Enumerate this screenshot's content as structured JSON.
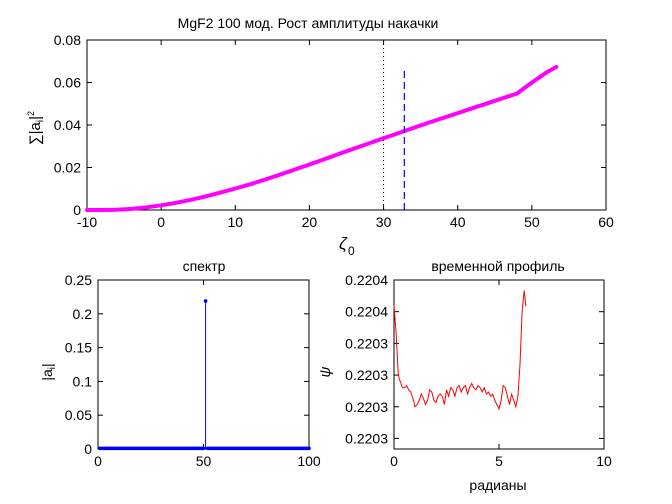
{
  "chart_data": [
    {
      "type": "line",
      "title": "MgF2 100 мод. Рост амплитуды накачки",
      "xlabel": "ζ0",
      "ylabel": "∑|a_i|²",
      "xlim": [
        -10,
        60
      ],
      "ylim": [
        0,
        0.08
      ],
      "xticks": [
        "-10",
        "0",
        "10",
        "20",
        "30",
        "40",
        "50",
        "60"
      ],
      "yticks": [
        "0",
        "0.02",
        "0.04",
        "0.06",
        "0.08"
      ],
      "series": [
        {
          "color": "#ff00ff",
          "x": [
            -10,
            -8,
            -6,
            -4,
            -2,
            0,
            2,
            4,
            6,
            8,
            10,
            12,
            14,
            16,
            18,
            20,
            22,
            24,
            26,
            28,
            30,
            32,
            34,
            36,
            38,
            40,
            42,
            44,
            46,
            48,
            50,
            52,
            53.3
          ],
          "y": [
            0.0,
            0.0,
            0.0001,
            0.0005,
            0.0012,
            0.0022,
            0.0034,
            0.0048,
            0.0064,
            0.0082,
            0.0101,
            0.0121,
            0.0143,
            0.0166,
            0.019,
            0.0214,
            0.0239,
            0.0264,
            0.0289,
            0.0313,
            0.0338,
            0.0362,
            0.0386,
            0.041,
            0.0433,
            0.0456,
            0.0479,
            0.0502,
            0.0525,
            0.0548,
            0.06,
            0.0648,
            0.0673
          ]
        }
      ],
      "marker_line": {
        "x": 32.8,
        "y_range": [
          0,
          0.067
        ],
        "style": "dashed",
        "color": "#0000ff"
      },
      "grid": false
    },
    {
      "type": "stem",
      "title": "спектр",
      "xlabel": "",
      "ylabel": "|a_i|",
      "xlim": [
        0,
        100
      ],
      "ylim": [
        0,
        0.25
      ],
      "xticks": [
        "0",
        "50",
        "100"
      ],
      "yticks": [
        "0",
        "0.05",
        "0.1",
        "0.15",
        "0.2",
        "0.25"
      ],
      "series": [
        {
          "color": "#0000ff",
          "x_start": 1,
          "x_end": 100,
          "peak_index": 51,
          "peak_value": 0.219,
          "base_value": 0.001
        }
      ],
      "grid": false
    },
    {
      "type": "line",
      "title": "временной профиль",
      "xlabel": "радианы",
      "ylabel": "ψ",
      "xlim": [
        0,
        10
      ],
      "ylim": [
        0.22026,
        0.22042
      ],
      "xticks": [
        "0",
        "5",
        "10"
      ],
      "yticks": [
        "0.2203",
        "0.2203",
        "0.2203",
        "0.2203",
        "0.2204",
        "0.2204"
      ],
      "ytick_values": [
        0.22027,
        0.2203,
        0.22033,
        0.22036,
        0.22039,
        0.22042
      ],
      "series": [
        {
          "color": "#ff0000",
          "x": [
            0.0,
            0.1,
            0.2,
            0.25,
            0.3,
            0.4,
            0.5,
            0.6,
            0.7,
            0.8,
            0.9,
            1.0,
            1.1,
            1.2,
            1.3,
            1.4,
            1.5,
            1.6,
            1.7,
            1.8,
            1.9,
            2.0,
            2.1,
            2.2,
            2.3,
            2.4,
            2.5,
            2.6,
            2.7,
            2.8,
            2.9,
            3.0,
            3.1,
            3.2,
            3.3,
            3.4,
            3.5,
            3.6,
            3.7,
            3.8,
            3.9,
            4.0,
            4.1,
            4.2,
            4.3,
            4.4,
            4.5,
            4.6,
            4.7,
            4.8,
            4.9,
            5.0,
            5.1,
            5.2,
            5.3,
            5.4,
            5.5,
            5.6,
            5.7,
            5.8,
            5.9,
            6.0,
            6.1,
            6.2,
            6.28
          ],
          "y": [
            0.220396,
            0.22037,
            0.220332,
            0.220326,
            0.220324,
            0.220318,
            0.220318,
            0.22032,
            0.220316,
            0.220314,
            0.220308,
            0.2203,
            0.220302,
            0.220306,
            0.220312,
            0.220308,
            0.220302,
            0.220306,
            0.220316,
            0.220314,
            0.220306,
            0.220304,
            0.22031,
            0.220312,
            0.22031,
            0.220302,
            0.220316,
            0.22031,
            0.220318,
            0.220316,
            0.22031,
            0.220318,
            0.22032,
            0.220314,
            0.220318,
            0.22032,
            0.220312,
            0.220318,
            0.220322,
            0.220318,
            0.220316,
            0.22032,
            0.220318,
            0.220314,
            0.220318,
            0.220312,
            0.220314,
            0.22031,
            0.220312,
            0.220306,
            0.220302,
            0.220298,
            0.220306,
            0.22032,
            0.220318,
            0.22031,
            0.220302,
            0.220312,
            0.220306,
            0.2203,
            0.22031,
            0.22034,
            0.22039,
            0.22041,
            0.220395
          ]
        }
      ],
      "grid": false
    }
  ]
}
